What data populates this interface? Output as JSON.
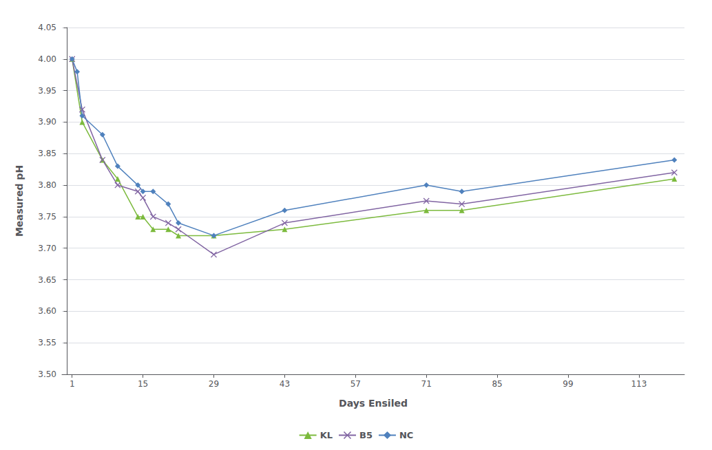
{
  "chart_data": {
    "type": "line",
    "xlabel": "Days Ensiled",
    "ylabel": "Measured pH",
    "xlim": [
      -1,
      122
    ],
    "ylim": [
      3.5,
      4.05
    ],
    "xticks": [
      1,
      15,
      29,
      43,
      57,
      71,
      85,
      99,
      113
    ],
    "yticks": [
      {
        "value": 3.5,
        "label": "3.50"
      },
      3.55,
      {
        "value": 3.6,
        "label": "3.60"
      },
      3.65,
      {
        "value": 3.7,
        "label": "3.70"
      },
      3.75,
      {
        "value": 3.8,
        "label": "3.80"
      },
      3.85,
      {
        "value": 3.9,
        "label": "3.90"
      },
      3.95,
      {
        "value": 4.0,
        "label": "4.00"
      },
      4.05
    ],
    "grid": true,
    "legend": "bottom",
    "series": [
      {
        "name": "KL",
        "color": "#7cba3d",
        "marker": "triangle",
        "x": [
          1,
          3,
          7,
          10,
          14,
          15,
          17,
          20,
          22,
          29,
          43,
          71,
          78,
          120
        ],
        "values": [
          4.0,
          3.9,
          3.84,
          3.81,
          3.75,
          3.75,
          3.73,
          3.73,
          3.72,
          3.72,
          3.73,
          3.76,
          3.76,
          3.81
        ]
      },
      {
        "name": "B5",
        "color": "#8064a2",
        "marker": "x",
        "x": [
          1,
          3,
          7,
          10,
          14,
          15,
          17,
          20,
          22,
          29,
          43,
          71,
          78,
          120
        ],
        "values": [
          4.0,
          3.92,
          3.84,
          3.8,
          3.79,
          3.78,
          3.75,
          3.74,
          3.73,
          3.69,
          3.74,
          3.775,
          3.77,
          3.82
        ]
      },
      {
        "name": "NC",
        "color": "#4f81bd",
        "marker": "diamond",
        "x": [
          1,
          2,
          3,
          7,
          10,
          14,
          15,
          17,
          20,
          22,
          29,
          43,
          71,
          78,
          120
        ],
        "values": [
          4.0,
          3.98,
          3.91,
          3.88,
          3.83,
          3.8,
          3.79,
          3.79,
          3.77,
          3.74,
          3.72,
          3.76,
          3.8,
          3.79,
          3.84
        ]
      }
    ]
  }
}
